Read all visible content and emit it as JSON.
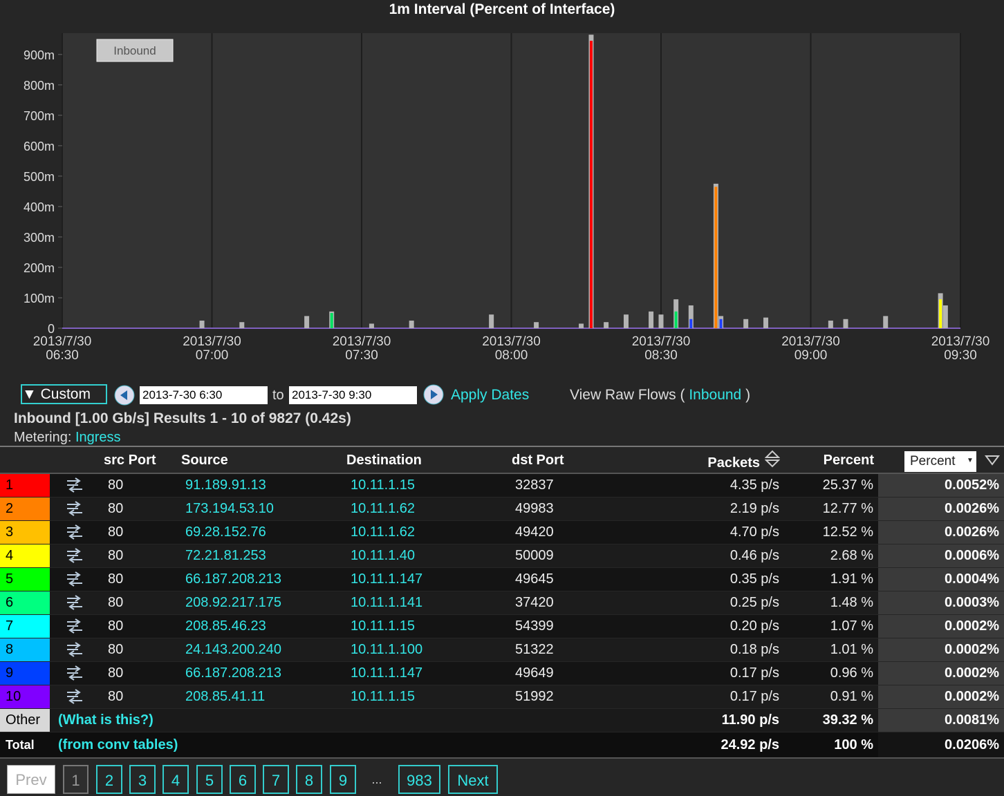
{
  "chart_data": {
    "type": "bar",
    "title": "1m Interval (Percent of Interface)",
    "toggle_label": "Inbound",
    "x": [
      "2013-07-30 06:58",
      "2013-07-30 07:06",
      "2013-07-30 07:19",
      "2013-07-30 07:24",
      "2013-07-30 07:32",
      "2013-07-30 07:40",
      "2013-07-30 07:56",
      "2013-07-30 08:05",
      "2013-07-30 08:14",
      "2013-07-30 08:16",
      "2013-07-30 08:19",
      "2013-07-30 08:23",
      "2013-07-30 08:28",
      "2013-07-30 08:30",
      "2013-07-30 08:33",
      "2013-07-30 08:36",
      "2013-07-30 08:41",
      "2013-07-30 08:42",
      "2013-07-30 08:47",
      "2013-07-30 08:51",
      "2013-07-30 09:04",
      "2013-07-30 09:07",
      "2013-07-30 09:15",
      "2013-07-30 09:26",
      "2013-07-30 09:27"
    ],
    "series": [
      {
        "color": "#b4b4b4",
        "values": [
          25,
          20,
          40,
          55,
          15,
          25,
          45,
          20,
          15,
          965,
          20,
          45,
          55,
          45,
          95,
          75,
          475,
          40,
          30,
          35,
          25,
          30,
          40,
          115,
          75
        ]
      },
      {
        "color": "#ff0000",
        "values": [
          null,
          null,
          null,
          null,
          null,
          null,
          null,
          null,
          null,
          945,
          null,
          null,
          null,
          null,
          null,
          null,
          null,
          null,
          null,
          null,
          null,
          null,
          null,
          null,
          null
        ]
      },
      {
        "color": "#ff8000",
        "values": [
          null,
          null,
          null,
          null,
          null,
          null,
          null,
          null,
          null,
          null,
          null,
          null,
          null,
          null,
          null,
          null,
          465,
          null,
          null,
          null,
          null,
          null,
          null,
          null,
          null
        ]
      },
      {
        "color": "#ffff00",
        "values": [
          null,
          null,
          null,
          null,
          null,
          null,
          null,
          null,
          null,
          null,
          null,
          null,
          null,
          null,
          null,
          null,
          null,
          null,
          null,
          null,
          null,
          null,
          null,
          95,
          null
        ]
      },
      {
        "color": "#00e060",
        "values": [
          null,
          null,
          null,
          50,
          null,
          null,
          null,
          null,
          null,
          null,
          null,
          null,
          null,
          null,
          55,
          null,
          null,
          null,
          null,
          null,
          null,
          null,
          null,
          null,
          null
        ]
      },
      {
        "color": "#2040ff",
        "values": [
          null,
          null,
          null,
          null,
          null,
          null,
          null,
          null,
          null,
          null,
          null,
          null,
          null,
          null,
          null,
          30,
          null,
          30,
          null,
          null,
          null,
          null,
          null,
          null,
          null
        ]
      }
    ],
    "xlim": [
      "2013-07-30 06:30",
      "2013-07-30 09:30"
    ],
    "xticks": [
      {
        "value": "2013-07-30 06:30",
        "label": "2013/7/30\n06:30"
      },
      {
        "value": "2013-07-30 07:00",
        "label": "2013/7/30\n07:00"
      },
      {
        "value": "2013-07-30 07:30",
        "label": "2013/7/30\n07:30"
      },
      {
        "value": "2013-07-30 08:00",
        "label": "2013/7/30\n08:00"
      },
      {
        "value": "2013-07-30 08:30",
        "label": "2013/7/30\n08:30"
      },
      {
        "value": "2013-07-30 09:00",
        "label": "2013/7/30\n09:00"
      },
      {
        "value": "2013-07-30 09:30",
        "label": "2013/7/30\n09:30"
      }
    ],
    "ylim": [
      0,
      970
    ],
    "yticks": [
      0,
      {
        "value": 100,
        "label": "100m"
      },
      {
        "value": 200,
        "label": "200m"
      },
      {
        "value": 300,
        "label": "300m"
      },
      {
        "value": 400,
        "label": "400m"
      },
      {
        "value": 500,
        "label": "500m"
      },
      {
        "value": 600,
        "label": "600m"
      },
      {
        "value": 700,
        "label": "700m"
      },
      {
        "value": 800,
        "label": "800m"
      },
      {
        "value": 900,
        "label": "900m"
      }
    ],
    "grid": "x"
  },
  "controls": {
    "range": "Custom",
    "start": "2013-7-30 6:30",
    "to": "to",
    "end": "2013-7-30 9:30",
    "apply": "Apply Dates",
    "raw_prefix": "View Raw Flows (",
    "raw_link": "Inbound",
    "raw_suffix": ")"
  },
  "summary": {
    "results": "Inbound [1.00 Gb/s] Results 1 - 10 of 9827 (0.42s)",
    "metering": "Metering:",
    "metering_link": "Ingress"
  },
  "table": {
    "headers": [
      "src Port",
      "Source",
      "Destination",
      "dst Port",
      "Packets",
      "Percent"
    ],
    "dropdown": "Percent",
    "rows": [
      [
        "1",
        "80",
        "91.189.91.13",
        "10.11.1.15",
        "32837",
        "4.35 p/s",
        "25.37 %",
        "0.0052%"
      ],
      [
        "2",
        "80",
        "173.194.53.10",
        "10.11.1.62",
        "49983",
        "2.19 p/s",
        "12.77 %",
        "0.0026%"
      ],
      [
        "3",
        "80",
        "69.28.152.76",
        "10.11.1.62",
        "49420",
        "4.70 p/s",
        "12.52 %",
        "0.0026%"
      ],
      [
        "4",
        "80",
        "72.21.81.253",
        "10.11.1.40",
        "50009",
        "0.46 p/s",
        "2.68 %",
        "0.0006%"
      ],
      [
        "5",
        "80",
        "66.187.208.213",
        "10.11.1.147",
        "49645",
        "0.35 p/s",
        "1.91 %",
        "0.0004%"
      ],
      [
        "6",
        "80",
        "208.92.217.175",
        "10.11.1.141",
        "37420",
        "0.25 p/s",
        "1.48 %",
        "0.0003%"
      ],
      [
        "7",
        "80",
        "208.85.46.23",
        "10.11.1.15",
        "54399",
        "0.20 p/s",
        "1.07 %",
        "0.0002%"
      ],
      [
        "8",
        "80",
        "24.143.200.240",
        "10.11.1.100",
        "51322",
        "0.18 p/s",
        "1.01 %",
        "0.0002%"
      ],
      [
        "9",
        "80",
        "66.187.208.213",
        "10.11.1.147",
        "49649",
        "0.17 p/s",
        "0.96 %",
        "0.0002%"
      ],
      [
        "10",
        "80",
        "208.85.41.11",
        "10.11.1.15",
        "51992",
        "0.17 p/s",
        "0.91 %",
        "0.0002%"
      ]
    ],
    "row_colors": [
      "#ff0000",
      "#ff8000",
      "#ffc000",
      "#ffff00",
      "#00ff00",
      "#00ff80",
      "#00ffff",
      "#00c0ff",
      "#0040ff",
      "#8000ff"
    ],
    "other": [
      "Other",
      "(What is this?)",
      "11.90 p/s",
      "39.32 %",
      "0.0081%"
    ],
    "total": [
      "Total",
      "(from conv tables)",
      "24.92 p/s",
      "100 %",
      "0.0206%"
    ]
  },
  "pagination": [
    "Prev",
    "1",
    "2",
    "3",
    "4",
    "5",
    "6",
    "7",
    "8",
    "9",
    "...",
    "983",
    "Next"
  ]
}
